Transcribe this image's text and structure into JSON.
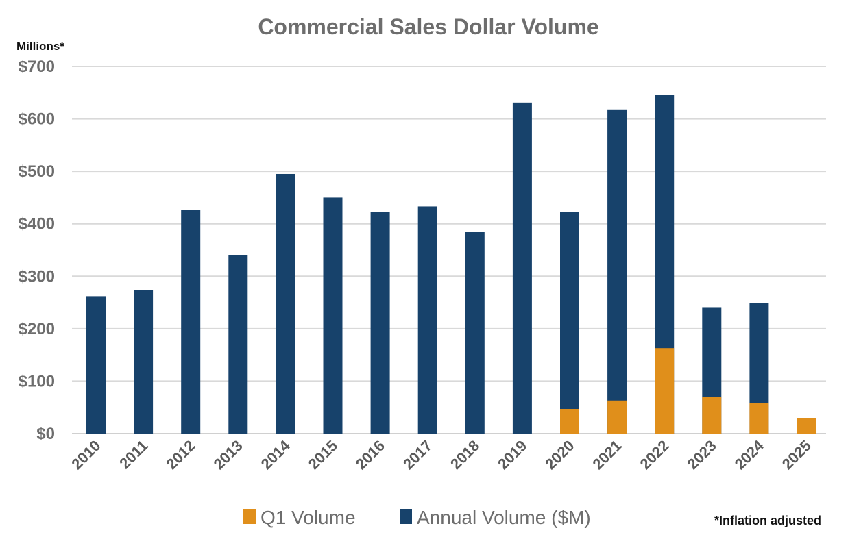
{
  "chart_data": {
    "type": "bar",
    "title": "Commercial Sales Dollar Volume",
    "ylabel": "Millions*",
    "xlabel": "",
    "ylim": [
      0,
      700
    ],
    "yticks": [
      "$0",
      "$100",
      "$200",
      "$300",
      "$400",
      "$500",
      "$600",
      "$700"
    ],
    "grid": true,
    "legend_position": "bottom",
    "footnote": "*Inflation adjusted",
    "categories": [
      "2010",
      "2011",
      "2012",
      "2013",
      "2014",
      "2015",
      "2016",
      "2017",
      "2018",
      "2019",
      "2020",
      "2021",
      "2022",
      "2023",
      "2024",
      "2025"
    ],
    "series": [
      {
        "name": "Annual Volume ($M)",
        "color": "#17426b",
        "values": [
          262,
          274,
          426,
          340,
          495,
          450,
          422,
          433,
          384,
          631,
          422,
          618,
          646,
          241,
          249,
          null
        ]
      },
      {
        "name": "Q1 Volume",
        "color": "#e08f1b",
        "values": [
          null,
          null,
          null,
          null,
          null,
          null,
          null,
          null,
          null,
          null,
          47,
          63,
          163,
          70,
          58,
          30
        ]
      }
    ],
    "legend_order": [
      "Q1 Volume",
      "Annual Volume ($M)"
    ]
  }
}
